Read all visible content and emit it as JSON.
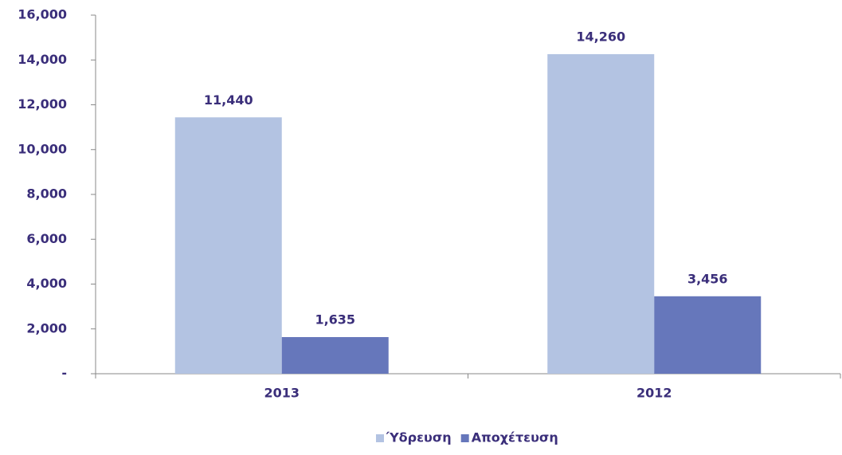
{
  "chart_data": {
    "type": "bar",
    "categories": [
      "2013",
      "2012"
    ],
    "series": [
      {
        "name": "Ύδρευση",
        "color": "#b3c3e2",
        "values": [
          11440,
          14260
        ],
        "value_labels": [
          "11,440",
          "14,260"
        ]
      },
      {
        "name": "Αποχέτευση",
        "color": "#6677bb",
        "values": [
          1635,
          3456
        ],
        "value_labels": [
          "1,635",
          "3,456"
        ]
      }
    ],
    "ylim": [
      0,
      16000
    ],
    "yticks": [
      {
        "value": 0,
        "label": "-"
      },
      {
        "value": 2000,
        "label": "2,000"
      },
      {
        "value": 4000,
        "label": "4,000"
      },
      {
        "value": 6000,
        "label": "6,000"
      },
      {
        "value": 8000,
        "label": "8,000"
      },
      {
        "value": 10000,
        "label": "10,000"
      },
      {
        "value": 12000,
        "label": "12,000"
      },
      {
        "value": 14000,
        "label": "14,000"
      },
      {
        "value": 16000,
        "label": "16,000"
      }
    ],
    "grid": false,
    "legend": "bottom"
  }
}
